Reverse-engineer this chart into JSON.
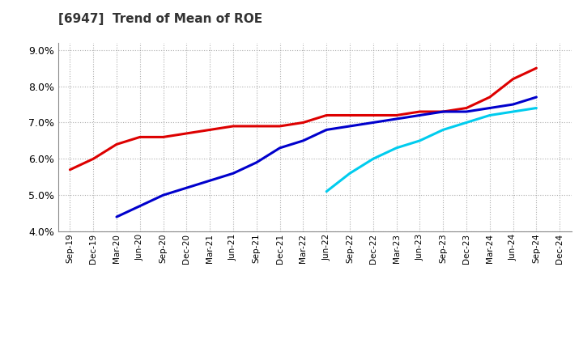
{
  "title": "[6947]  Trend of Mean of ROE",
  "ylim": [
    0.04,
    0.092
  ],
  "yticks": [
    0.04,
    0.05,
    0.06,
    0.07,
    0.08,
    0.09
  ],
  "background_color": "#ffffff",
  "grid_color": "#999999",
  "x_labels": [
    "Sep-19",
    "Dec-19",
    "Mar-20",
    "Jun-20",
    "Sep-20",
    "Dec-20",
    "Mar-21",
    "Jun-21",
    "Sep-21",
    "Dec-21",
    "Mar-22",
    "Jun-22",
    "Sep-22",
    "Dec-22",
    "Mar-23",
    "Jun-23",
    "Sep-23",
    "Dec-23",
    "Mar-24",
    "Jun-24",
    "Sep-24",
    "Dec-24"
  ],
  "series": {
    "3 Years": {
      "color": "#dd0000",
      "linewidth": 2.2,
      "values": [
        0.057,
        0.06,
        0.064,
        0.066,
        0.066,
        0.067,
        0.068,
        0.069,
        0.069,
        0.069,
        0.07,
        0.072,
        0.072,
        0.072,
        0.072,
        0.073,
        0.073,
        0.074,
        0.077,
        0.082,
        0.085,
        null
      ]
    },
    "5 Years": {
      "color": "#0000cc",
      "linewidth": 2.2,
      "values": [
        null,
        null,
        0.044,
        0.047,
        0.05,
        0.052,
        0.054,
        0.056,
        0.059,
        0.063,
        0.065,
        0.068,
        0.069,
        0.07,
        0.071,
        0.072,
        0.073,
        0.073,
        0.074,
        0.075,
        0.077,
        null
      ]
    },
    "7 Years": {
      "color": "#00ccee",
      "linewidth": 2.2,
      "values": [
        null,
        null,
        null,
        null,
        null,
        null,
        null,
        null,
        null,
        null,
        null,
        0.051,
        0.056,
        0.06,
        0.063,
        0.065,
        0.068,
        0.07,
        0.072,
        0.073,
        0.074,
        null
      ]
    },
    "10 Years": {
      "color": "#00aa00",
      "linewidth": 2.2,
      "values": [
        null,
        null,
        null,
        null,
        null,
        null,
        null,
        null,
        null,
        null,
        null,
        null,
        null,
        null,
        null,
        null,
        null,
        null,
        null,
        null,
        null,
        null
      ]
    }
  }
}
